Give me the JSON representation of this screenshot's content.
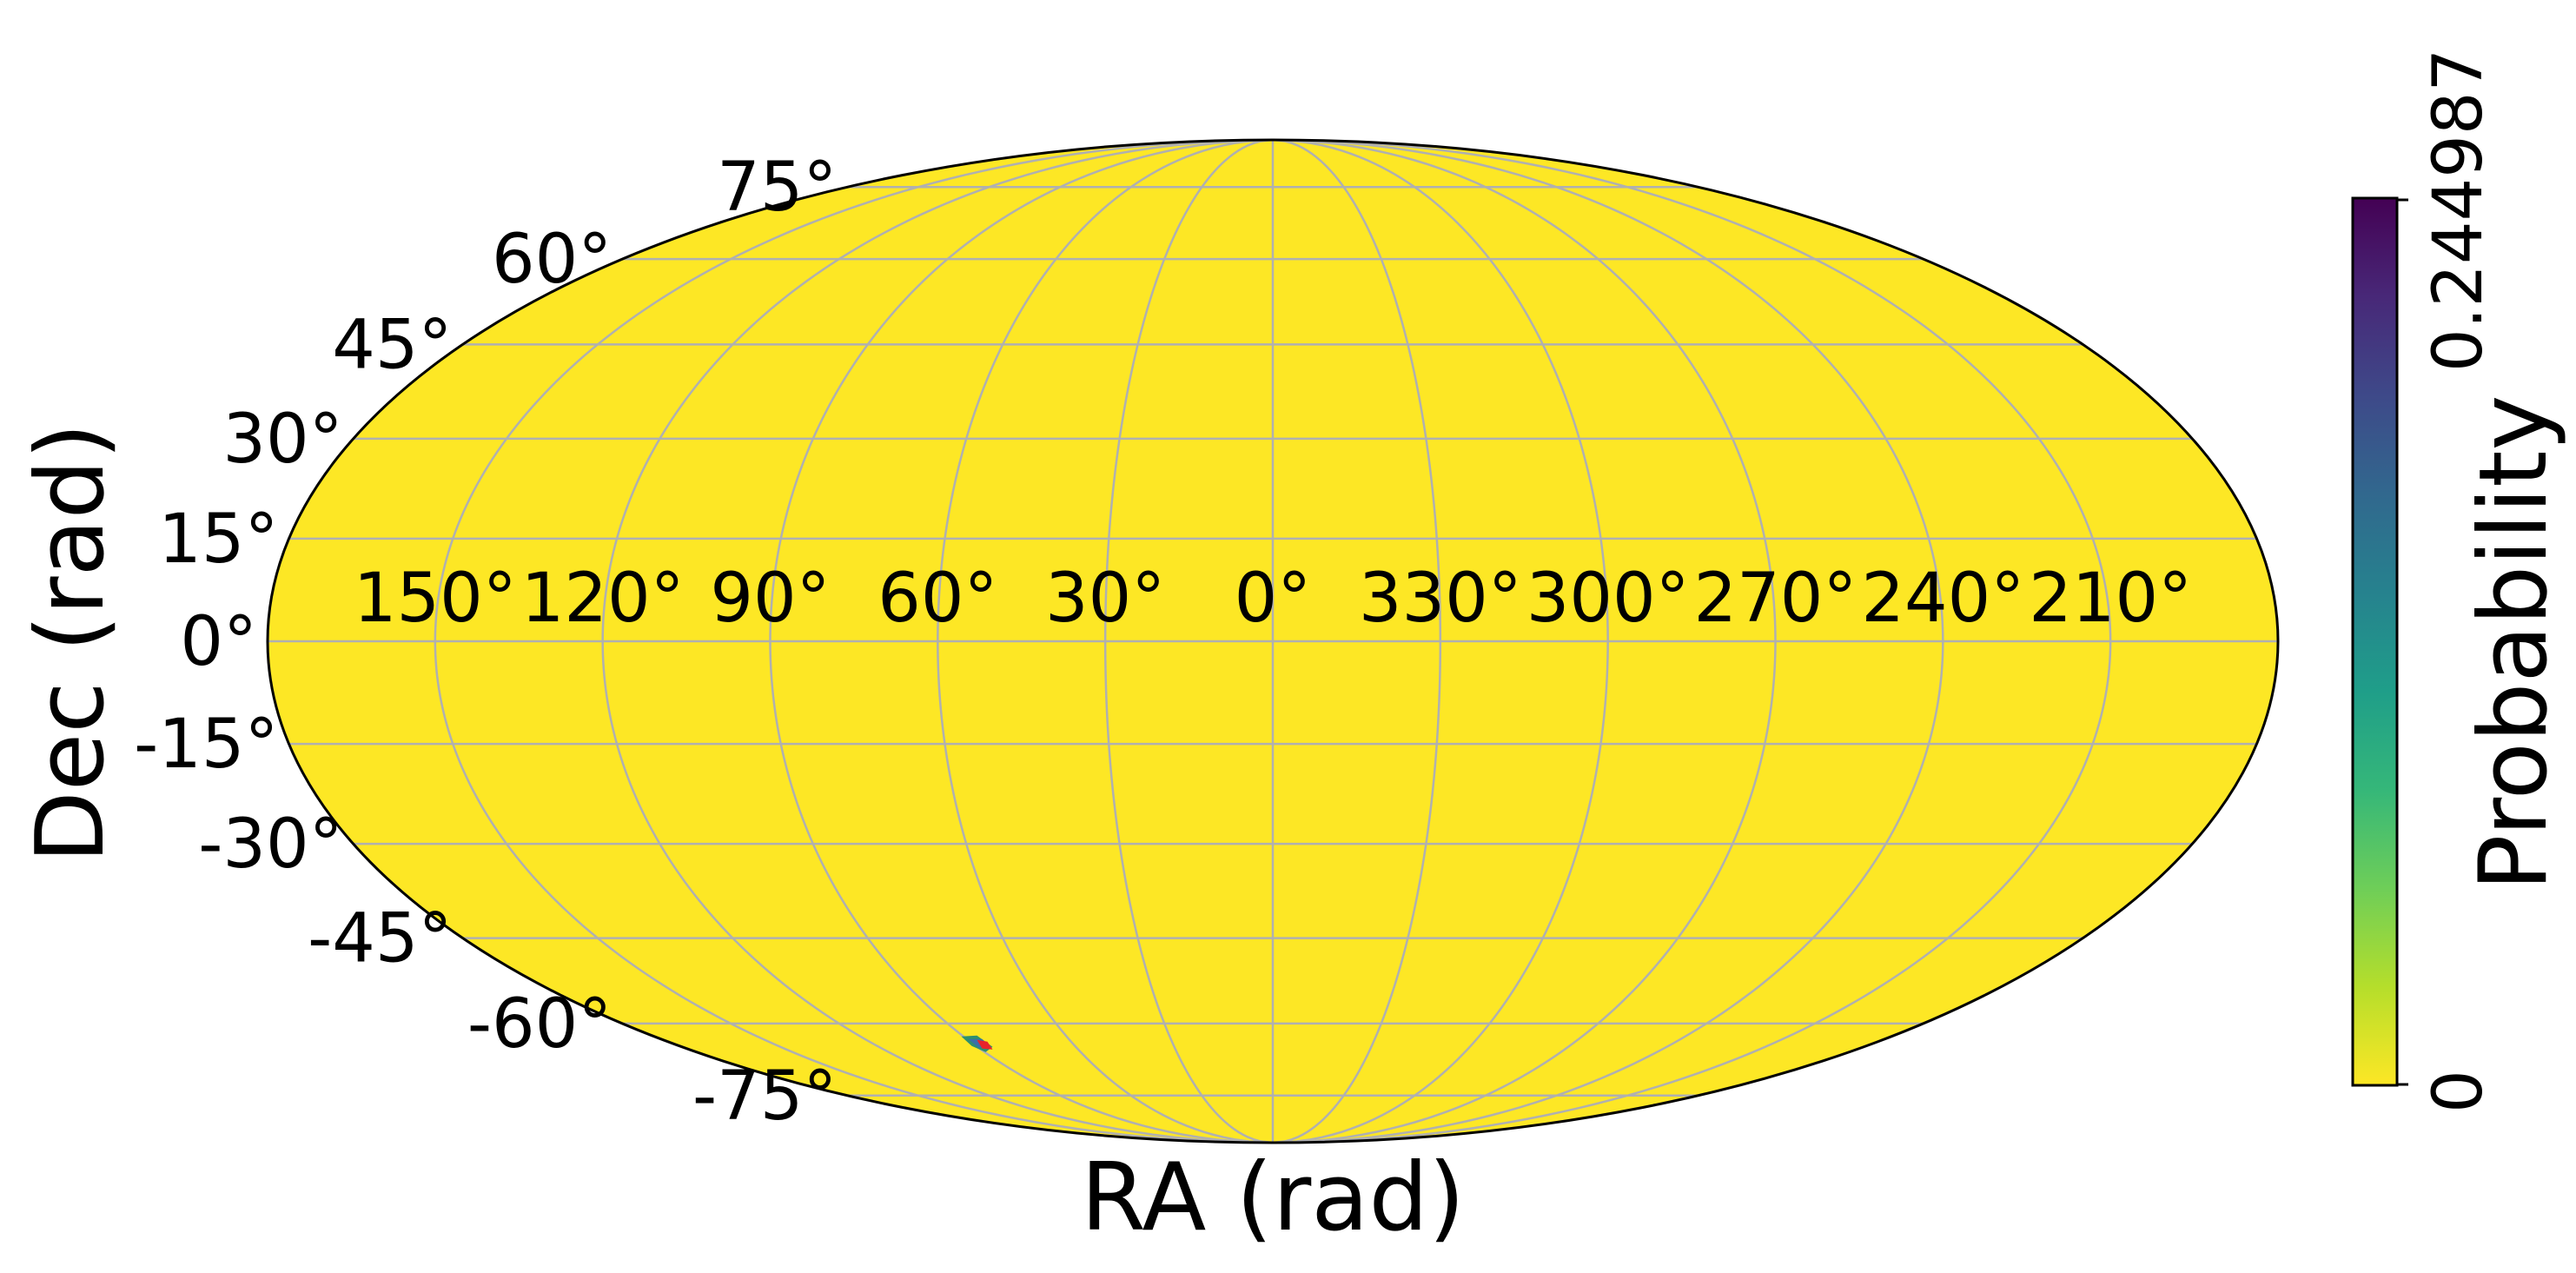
{
  "chart_data": {
    "type": "heatmap",
    "projection": "mollweide",
    "xlabel": "RA (rad)",
    "ylabel": "Dec (rad)",
    "colorbar": {
      "label": "Probability",
      "min": 0,
      "max": 0.244987,
      "tick_labels": [
        "0",
        "0.244987"
      ],
      "colormap": "viridis_r",
      "colors": [
        "#fde725",
        "#b5de2b",
        "#6ece58",
        "#35b779",
        "#1f9e89",
        "#26828e",
        "#31688e",
        "#3e4989",
        "#482878",
        "#440154"
      ]
    },
    "ra_tick_values": [
      150,
      120,
      90,
      60,
      30,
      0,
      330,
      300,
      270,
      240,
      210
    ],
    "ra_tick_labels": [
      "150°",
      "120°",
      "90°",
      "60°",
      "30°",
      "0°",
      "330°",
      "300°",
      "270°",
      "240°",
      "210°"
    ],
    "dec_tick_values": [
      75,
      60,
      45,
      30,
      15,
      0,
      -15,
      -30,
      -45,
      -60,
      -75
    ],
    "dec_tick_labels": [
      "75°",
      "60°",
      "45°",
      "30°",
      "15°",
      "0°",
      "-15°",
      "-30°",
      "-45°",
      "-60°",
      "-75°"
    ],
    "grid": true,
    "background_value": 0,
    "hotspot": {
      "ra_deg": 88,
      "dec_deg": -64,
      "value": 0.244987
    }
  },
  "colors": {
    "map_fill": "#fde725",
    "grid": "#b0b0b0",
    "outline": "#000000",
    "hotspot_outer": "#2f8f6f",
    "hotspot_mid": "#3b6ea8",
    "hotspot_core": "#e8232b"
  }
}
